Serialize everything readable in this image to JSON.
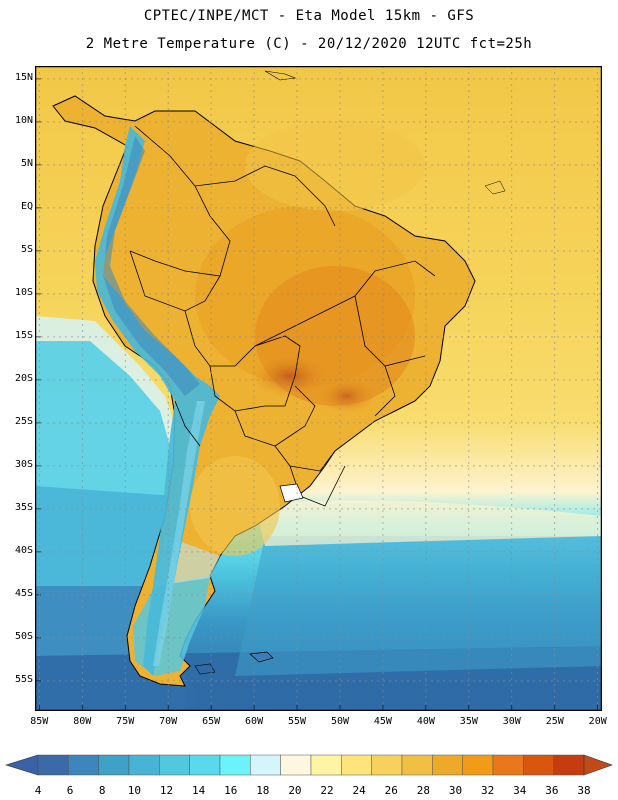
{
  "header": {
    "line1": "CPTEC/INPE/MCT -  Eta Model 15km - GFS",
    "line2": "2 Metre Temperature (C) - 20/12/2020 12UTC fct=25h"
  },
  "map": {
    "region": "South America",
    "lon_range": [
      -85.5,
      -19.5
    ],
    "lat_range": [
      -58.5,
      16.5
    ],
    "latitude_labels": [
      "15N",
      "10N",
      "5N",
      "EQ",
      "5S",
      "10S",
      "15S",
      "20S",
      "25S",
      "30S",
      "35S",
      "40S",
      "45S",
      "50S",
      "55S"
    ],
    "longitude_labels": [
      "85W",
      "80W",
      "75W",
      "70W",
      "65W",
      "60W",
      "55W",
      "50W",
      "45W",
      "40W",
      "35W",
      "30W",
      "25W",
      "20W"
    ],
    "colors": {
      "ocean_warm": "#f5cf4a",
      "land_hot": "#e8a21c",
      "hot_spot": "#c4601a",
      "andes": "#44c1d6",
      "south_ocean": "#2f6fa8",
      "frame": "#000000"
    }
  },
  "colorbar": {
    "unit": "C",
    "labels": [
      "4",
      "6",
      "8",
      "10",
      "12",
      "14",
      "16",
      "18",
      "20",
      "22",
      "24",
      "26",
      "28",
      "30",
      "32",
      "34",
      "36",
      "38"
    ],
    "colors": [
      "#3b6aa8",
      "#3d85bd",
      "#3fa0c8",
      "#47b4d6",
      "#52c7e0",
      "#5ad8ec",
      "#6cf3fa",
      "#d4f5fb",
      "#fdf7e0",
      "#fff3a4",
      "#fde57c",
      "#f7d15c",
      "#f2bf45",
      "#edaa2a",
      "#f19b17",
      "#e8781b",
      "#d9560f",
      "#c43c10"
    ],
    "left_arrow_color": "#3a62a6",
    "right_arrow_color": "#c04a18"
  }
}
